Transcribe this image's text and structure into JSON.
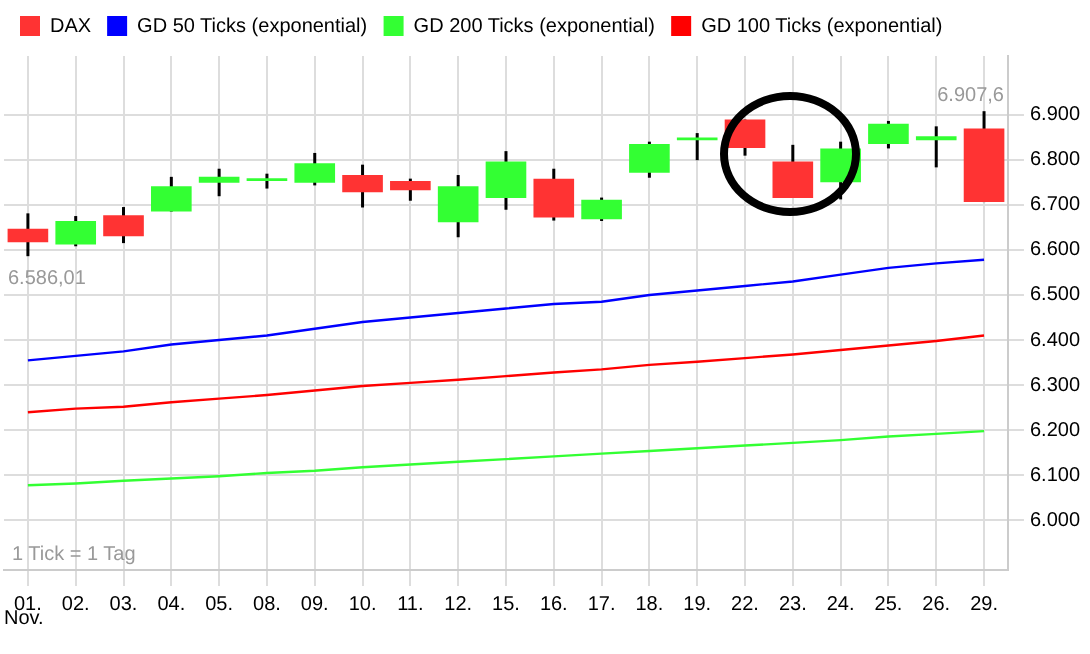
{
  "chart_data": {
    "type": "candlestick",
    "categories": [
      "01.",
      "02.",
      "03.",
      "04.",
      "05.",
      "08.",
      "09.",
      "10.",
      "11.",
      "12.",
      "15.",
      "16.",
      "17.",
      "18.",
      "19.",
      "22.",
      "23.",
      "24.",
      "25.",
      "26.",
      "29."
    ],
    "series": [
      {
        "name": "DAX",
        "color": "#ff3333",
        "colors": [
          "#ff3333",
          "#33ff33",
          "#ff3333",
          "#33ff33",
          "#33ff33",
          "#33ff33",
          "#33ff33",
          "#ff3333",
          "#ff3333",
          "#33ff33",
          "#33ff33",
          "#ff3333",
          "#33ff33",
          "#33ff33",
          "#33ff33",
          "#ff3333",
          "#ff3333",
          "#33ff33",
          "#33ff33",
          "#33ff33",
          "#ff3333"
        ],
        "ohlc": [
          [
            6647,
            6681,
            6586.01,
            6617
          ],
          [
            6612,
            6675,
            6608,
            6664
          ],
          [
            6677,
            6695,
            6615,
            6630
          ],
          [
            6685,
            6762,
            6685,
            6741
          ],
          [
            6749,
            6780,
            6719,
            6762
          ],
          [
            6753,
            6769,
            6736,
            6759
          ],
          [
            6749,
            6815,
            6743,
            6792
          ],
          [
            6766,
            6789,
            6694,
            6728
          ],
          [
            6753,
            6758,
            6709,
            6732
          ],
          [
            6661,
            6766,
            6628,
            6741
          ],
          [
            6715,
            6819,
            6689,
            6796
          ],
          [
            6758,
            6780,
            6665,
            6672
          ],
          [
            6668,
            6716,
            6664,
            6711
          ],
          [
            6771,
            6840,
            6760,
            6835
          ],
          [
            6843,
            6859,
            6799,
            6849
          ],
          [
            6889,
            6889,
            6809,
            6826
          ],
          [
            6796,
            6833,
            6715,
            6715
          ],
          [
            6750,
            6840,
            6712,
            6825
          ],
          [
            6835,
            6886,
            6825,
            6880
          ],
          [
            6843,
            6874,
            6783,
            6852
          ],
          [
            6869,
            6907.6,
            6706,
            6706
          ]
        ]
      },
      {
        "name": "GD 50 Ticks (exponential)",
        "type": "line",
        "color": "#0000ff",
        "values": [
          6355,
          6365,
          6375,
          6390,
          6400,
          6410,
          6425,
          6440,
          6450,
          6460,
          6470,
          6480,
          6485,
          6500,
          6510,
          6520,
          6530,
          6545,
          6560,
          6570,
          6578
        ]
      },
      {
        "name": "GD 200 Ticks (exponential)",
        "type": "line",
        "color": "#33ff33",
        "values": [
          6078,
          6082,
          6088,
          6093,
          6098,
          6105,
          6110,
          6118,
          6124,
          6130,
          6136,
          6142,
          6148,
          6154,
          6160,
          6166,
          6172,
          6178,
          6186,
          6192,
          6198
        ]
      },
      {
        "name": "GD 100 Ticks (exponential)",
        "type": "line",
        "color": "#ff0000",
        "values": [
          6240,
          6248,
          6252,
          6262,
          6270,
          6278,
          6288,
          6298,
          6305,
          6312,
          6320,
          6328,
          6335,
          6345,
          6352,
          6360,
          6368,
          6378,
          6388,
          6398,
          6410
        ]
      }
    ],
    "ylim": [
      5890,
      7030
    ],
    "yticks": [
      {
        "value": 6000,
        "label": "6.000"
      },
      {
        "value": 6100,
        "label": "6.100"
      },
      {
        "value": 6200,
        "label": "6.200"
      },
      {
        "value": 6300,
        "label": "6.300"
      },
      {
        "value": 6400,
        "label": "6.400"
      },
      {
        "value": 6500,
        "label": "6.500"
      },
      {
        "value": 6600,
        "label": "6.600"
      },
      {
        "value": 6700,
        "label": "6.700"
      },
      {
        "value": 6800,
        "label": "6.800"
      },
      {
        "value": 6900,
        "label": "6.900"
      }
    ],
    "grid": true,
    "legend": "top left",
    "marker": "none",
    "line_style": "solid",
    "annotations": [
      {
        "text": "6.586,01",
        "x": "01.",
        "y": 6586.01
      },
      {
        "text": "6.907,6",
        "x": "29.",
        "y": 6907.6
      },
      "1 Tick = 1 Tag",
      "Nov."
    ]
  }
}
